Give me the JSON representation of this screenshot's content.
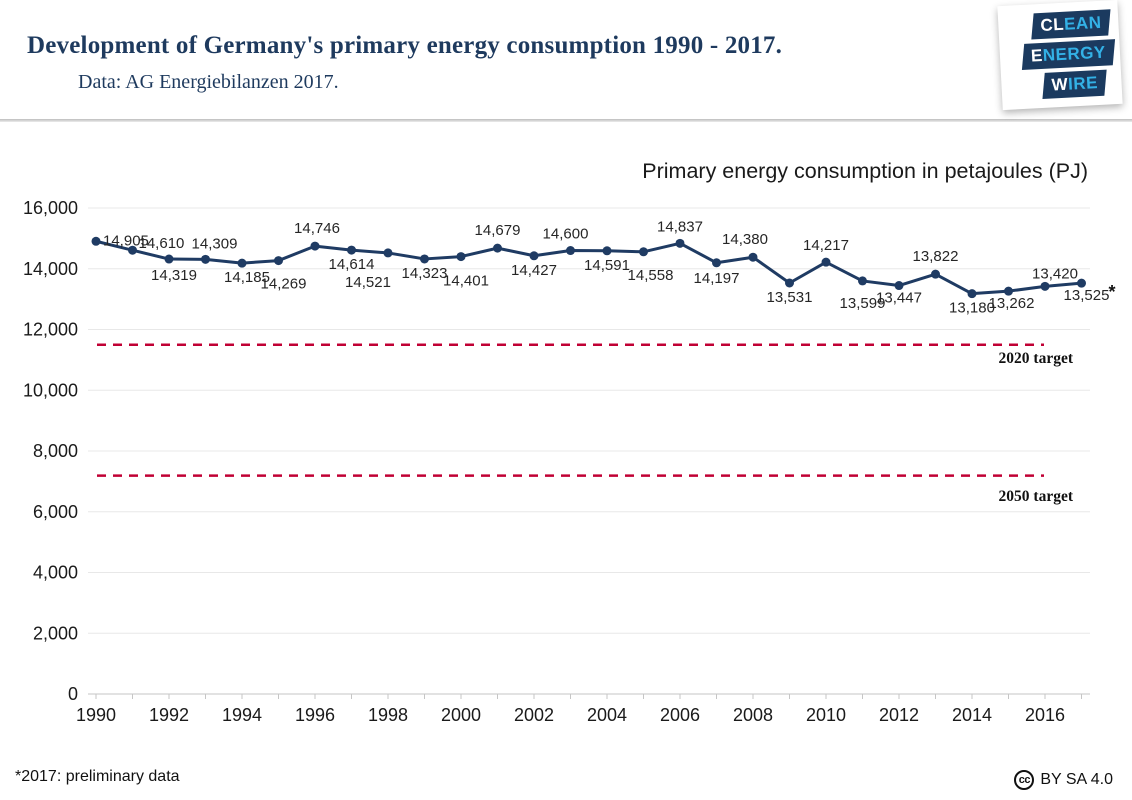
{
  "header": {
    "title": "Development of Germany's primary energy consumption 1990 - 2017.",
    "subtitle": "Data: AG Energiebilanzen 2017.",
    "logo": {
      "rows": [
        {
          "white": "CL",
          "blue": "EAN"
        },
        {
          "white": "E",
          "blue": "NERGY"
        },
        {
          "white": "W",
          "blue": "IRE"
        }
      ]
    }
  },
  "colors": {
    "brand_navy": "#1b3a5f",
    "brand_light_blue": "#33b1e6",
    "line_navy": "#1f3b63",
    "target_red": "#c00034"
  },
  "chart_data": {
    "type": "line",
    "title": "Primary energy consumption in petajoules (PJ)",
    "ylim": [
      0,
      16000
    ],
    "ytick_step": 2000,
    "ytick_labels": [
      "0",
      "2,000",
      "4,000",
      "6,000",
      "8,000",
      "10,000",
      "12,000",
      "14,000",
      "16,000"
    ],
    "xtick_labels": [
      "1990",
      "1992",
      "1994",
      "1996",
      "1998",
      "2000",
      "2002",
      "2004",
      "2006",
      "2008",
      "2010",
      "2012",
      "2014",
      "2016"
    ],
    "grid": "horizontal",
    "legend": "none",
    "line_color": "#1f3b63",
    "target_color": "#c00034",
    "points": [
      {
        "year": 1990,
        "value": 14905,
        "label": "14,905",
        "offset": [
          7,
          4
        ],
        "anchor": "start"
      },
      {
        "year": 1991,
        "value": 14610,
        "label": "14,610",
        "offset": [
          6,
          -2
        ],
        "anchor": "start"
      },
      {
        "year": 1992,
        "value": 14319,
        "label": "14,319",
        "offset": [
          5,
          21
        ]
      },
      {
        "year": 1993,
        "value": 14309,
        "label": "14,309",
        "offset": [
          9,
          -11
        ]
      },
      {
        "year": 1994,
        "value": 14185,
        "label": "14,185",
        "offset": [
          5,
          19
        ]
      },
      {
        "year": 1995,
        "value": 14269,
        "label": "14,269",
        "offset": [
          5,
          28
        ]
      },
      {
        "year": 1996,
        "value": 14746,
        "label": "14,746",
        "offset": [
          2,
          -13
        ]
      },
      {
        "year": 1997,
        "value": 14614,
        "label": "14,614",
        "offset": [
          0,
          19
        ]
      },
      {
        "year": 1998,
        "value": 14521,
        "label": "14,521",
        "offset": [
          -20,
          34
        ]
      },
      {
        "year": 1999,
        "value": 14323,
        "label": "14,323",
        "offset": [
          0,
          19
        ]
      },
      {
        "year": 2000,
        "value": 14401,
        "label": "14,401",
        "offset": [
          5,
          29
        ]
      },
      {
        "year": 2001,
        "value": 14679,
        "label": "14,679",
        "offset": [
          0,
          -13
        ]
      },
      {
        "year": 2002,
        "value": 14427,
        "label": "14,427",
        "offset": [
          0,
          19
        ]
      },
      {
        "year": 2003,
        "value": 14600,
        "label": "14,600",
        "offset": [
          -5,
          -12
        ]
      },
      {
        "year": 2004,
        "value": 14591,
        "label": "14,591",
        "offset": [
          0,
          19
        ]
      },
      {
        "year": 2005,
        "value": 14558,
        "label": "14,558",
        "offset": [
          7,
          28
        ]
      },
      {
        "year": 2006,
        "value": 14837,
        "label": "14,837",
        "offset": [
          0,
          -12
        ]
      },
      {
        "year": 2007,
        "value": 14197,
        "label": "14,197",
        "offset": [
          0,
          20
        ]
      },
      {
        "year": 2008,
        "value": 14380,
        "label": "14,380",
        "offset": [
          -8,
          -13
        ]
      },
      {
        "year": 2009,
        "value": 13531,
        "label": "13,531",
        "offset": [
          0,
          19
        ]
      },
      {
        "year": 2010,
        "value": 14217,
        "label": "14,217",
        "offset": [
          0,
          -12
        ]
      },
      {
        "year": 2011,
        "value": 13599,
        "label": "13,599",
        "offset": [
          0,
          27
        ]
      },
      {
        "year": 2012,
        "value": 13447,
        "label": "13,447",
        "offset": [
          0,
          17
        ]
      },
      {
        "year": 2013,
        "value": 13822,
        "label": "13,822",
        "offset": [
          0,
          -13
        ]
      },
      {
        "year": 2014,
        "value": 13180,
        "label": "13,180",
        "offset": [
          0,
          19
        ]
      },
      {
        "year": 2015,
        "value": 13262,
        "label": "13,262",
        "offset": [
          3,
          17
        ]
      },
      {
        "year": 2016,
        "value": 13420,
        "label": "13,420",
        "offset": [
          10,
          -8
        ]
      },
      {
        "year": 2017,
        "value": 13525,
        "label": "13,525",
        "offset": [
          5,
          17
        ]
      }
    ],
    "targets": [
      {
        "label": "2020 target",
        "value": 11500,
        "label_dy": 18
      },
      {
        "label": "2050 target",
        "value": 7190,
        "label_dy": 25
      }
    ],
    "preliminary_marker": {
      "year": 2017,
      "symbol": "*"
    }
  },
  "footer": {
    "footnote": "*2017: preliminary data",
    "cc": "cc",
    "license": "BY SA 4.0"
  }
}
